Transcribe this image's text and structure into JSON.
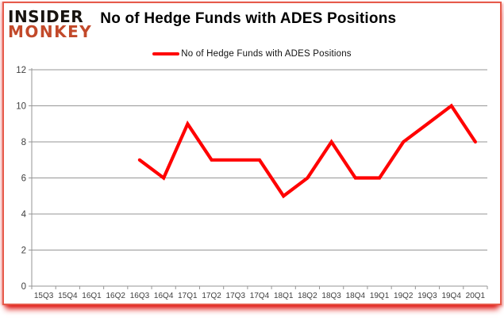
{
  "header": {
    "logo": {
      "line1": "INSIDER",
      "line2": "MONKEY"
    },
    "title": "No of Hedge Funds with ADES Positions"
  },
  "legend": {
    "label": "No of Hedge Funds with ADES Positions"
  },
  "colors": {
    "series": "#ff0000",
    "logo_dark": "#17130f",
    "logo_accent": "#c2492a",
    "grid": "#969696",
    "axis_text": "#404040",
    "frame_red": "#e23e2c"
  },
  "chart_data": {
    "type": "line",
    "title": "No of Hedge Funds with ADES Positions",
    "categories": [
      "15Q3",
      "15Q4",
      "16Q1",
      "16Q2",
      "16Q3",
      "16Q4",
      "17Q1",
      "17Q2",
      "17Q3",
      "17Q4",
      "18Q1",
      "18Q2",
      "18Q3",
      "18Q4",
      "19Q1",
      "19Q2",
      "19Q3",
      "19Q4",
      "20Q1"
    ],
    "series": [
      {
        "name": "No of Hedge Funds with ADES Positions",
        "values": [
          null,
          null,
          null,
          null,
          7,
          6,
          9,
          7,
          7,
          7,
          5,
          6,
          8,
          6,
          6,
          8,
          9,
          10,
          8
        ]
      }
    ],
    "xlabel": "",
    "ylabel": "",
    "ylim": [
      0,
      12
    ],
    "yticks": [
      0,
      2,
      4,
      6,
      8,
      10,
      12
    ],
    "grid": true,
    "legend_position": "top"
  }
}
